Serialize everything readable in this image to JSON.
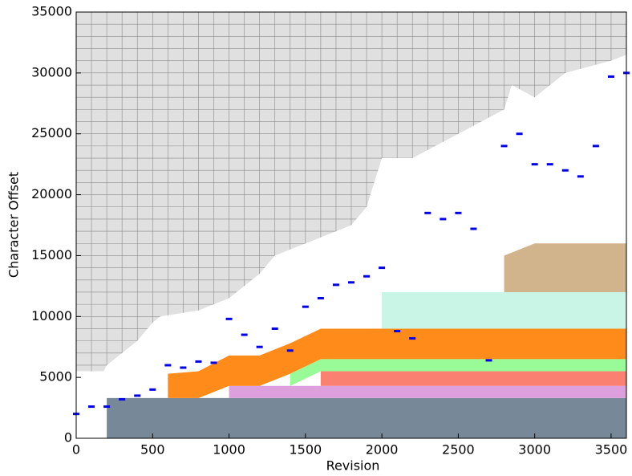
{
  "chart_data": {
    "type": "stacked_area",
    "xlabel": "Revision",
    "ylabel": "Character Offset",
    "xlim": [
      0,
      3600
    ],
    "ylim": [
      0,
      35000
    ],
    "xticks": [
      0,
      500,
      1000,
      1500,
      2000,
      2500,
      3000,
      3500
    ],
    "yticks": [
      0,
      5000,
      10000,
      15000,
      20000,
      25000,
      30000,
      35000
    ],
    "x_minor_step": 100,
    "y_minor_step": 1000,
    "grid": true,
    "background": "#e0e0e0",
    "envelope": {
      "color": "#ffffff",
      "x": [
        0,
        180,
        200,
        400,
        500,
        550,
        800,
        1000,
        1200,
        1300,
        1500,
        1800,
        1900,
        1950,
        2000,
        2200,
        2500,
        2800,
        2850,
        3000,
        3200,
        3500,
        3600
      ],
      "values": [
        5500,
        5500,
        6000,
        8000,
        9500,
        10000,
        10500,
        11500,
        13500,
        15000,
        16000,
        17500,
        19000,
        21000,
        23000,
        23000,
        25000,
        27000,
        29000,
        28000,
        30000,
        31000,
        31500
      ]
    },
    "x": [
      0,
      200,
      400,
      600,
      800,
      1000,
      1200,
      1400,
      1600,
      1800,
      2000,
      2200,
      2400,
      2600,
      2800,
      3000,
      3200,
      3400,
      3600
    ],
    "series": [
      {
        "color": "#778899",
        "values": [
          null,
          3300,
          3300,
          3300,
          3300,
          3300,
          3300,
          3300,
          3300,
          3300,
          3300,
          3300,
          3300,
          3300,
          3300,
          3300,
          3300,
          3300,
          3300
        ]
      },
      {
        "color": "#dda0dd",
        "values": [
          null,
          null,
          null,
          null,
          null,
          1000,
          1000,
          1000,
          1000,
          1000,
          1000,
          1000,
          1000,
          1000,
          1000,
          1000,
          1000,
          1000,
          1000
        ]
      },
      {
        "color": "#fa8072",
        "values": [
          null,
          null,
          null,
          null,
          null,
          null,
          null,
          null,
          1200,
          1200,
          1200,
          1200,
          1200,
          1200,
          1200,
          1200,
          1200,
          1200,
          1200
        ]
      },
      {
        "color": "#98fb98",
        "values": [
          null,
          null,
          null,
          null,
          null,
          null,
          null,
          1000,
          1000,
          1000,
          1000,
          1000,
          1000,
          1000,
          1000,
          1000,
          1000,
          1000,
          1000
        ]
      },
      {
        "color": "#ff8c1a",
        "values": [
          null,
          null,
          null,
          2000,
          2200,
          2500,
          2500,
          2500,
          2500,
          2500,
          2500,
          2500,
          2500,
          2500,
          2500,
          2500,
          2500,
          2500,
          2500
        ]
      },
      {
        "color": "#c8f5e6",
        "values": [
          null,
          null,
          null,
          null,
          null,
          null,
          null,
          null,
          null,
          null,
          3000,
          3000,
          3000,
          3000,
          3000,
          3000,
          3000,
          3000,
          3000
        ]
      },
      {
        "color": "#d2b48c",
        "values": [
          null,
          null,
          null,
          null,
          null,
          null,
          null,
          null,
          null,
          null,
          null,
          null,
          null,
          null,
          3000,
          4000,
          4000,
          4000,
          4000
        ]
      }
    ],
    "points": {
      "color": "#0000ee",
      "x": [
        0,
        100,
        200,
        300,
        400,
        500,
        600,
        700,
        800,
        900,
        1000,
        1100,
        1200,
        1300,
        1400,
        1500,
        1600,
        1700,
        1800,
        1900,
        2000,
        2100,
        2200,
        2300,
        2400,
        2500,
        2600,
        2700,
        2800,
        2900,
        3000,
        3100,
        3200,
        3300,
        3400,
        3500,
        3600
      ],
      "values": [
        2000,
        2600,
        2600,
        3200,
        3500,
        4000,
        6000,
        5800,
        6300,
        6200,
        9800,
        8500,
        7500,
        9000,
        7200,
        10800,
        11500,
        12600,
        12800,
        13300,
        14000,
        8800,
        8200,
        18500,
        18000,
        18500,
        17200,
        6400,
        24000,
        25000,
        22500,
        22500,
        22000,
        21500,
        24000,
        29700,
        30000
      ]
    }
  }
}
